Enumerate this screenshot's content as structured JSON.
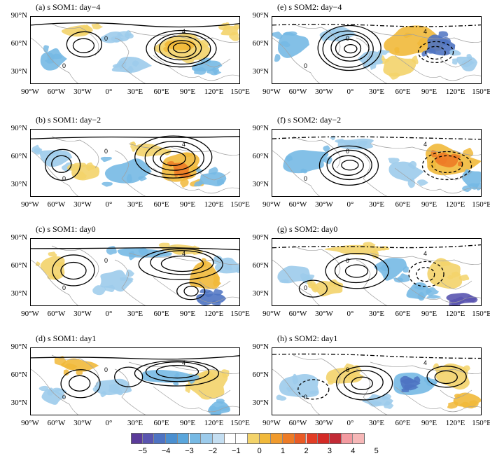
{
  "panels": [
    {
      "id": "a",
      "title": "(a) s SOM1: day−4"
    },
    {
      "id": "b",
      "title": "(b) s SOM1: day−2"
    },
    {
      "id": "c",
      "title": "(c) s SOM1: day0"
    },
    {
      "id": "d",
      "title": "(d) s SOM1: day1"
    },
    {
      "id": "e",
      "title": "(e) s SOM2: day−4"
    },
    {
      "id": "f",
      "title": "(f) s SOM2: day−2"
    },
    {
      "id": "g",
      "title": "(g) s SOM2: day0"
    },
    {
      "id": "h",
      "title": "(h) s SOM2: day1"
    }
  ],
  "lat_labels": [
    "90°N",
    "60°N",
    "30°N"
  ],
  "lon_labels": [
    "90°W",
    "60°W",
    "30°W",
    "0°",
    "30°E",
    "60°E",
    "90°E",
    "120°E",
    "150°E"
  ],
  "contour_label": "0",
  "contour_label_4": "4",
  "colorbar": {
    "labels": [
      "−5",
      "−4",
      "−3",
      "−2",
      "−1",
      "0",
      "1",
      "2",
      "3",
      "4",
      "5"
    ],
    "colors": [
      "#5b3b9a",
      "#5a55b0",
      "#4e73c2",
      "#4a8fd0",
      "#5aa6dc",
      "#76b9e4",
      "#9ccbeb",
      "#c4def1",
      "#ffffff",
      "#ffffff",
      "#f3d36a",
      "#f1b93a",
      "#f09a2c",
      "#ed7b26",
      "#e95a25",
      "#e23d25",
      "#d42a26",
      "#c22a35",
      "#f39aa0",
      "#f6b7b7"
    ]
  }
}
